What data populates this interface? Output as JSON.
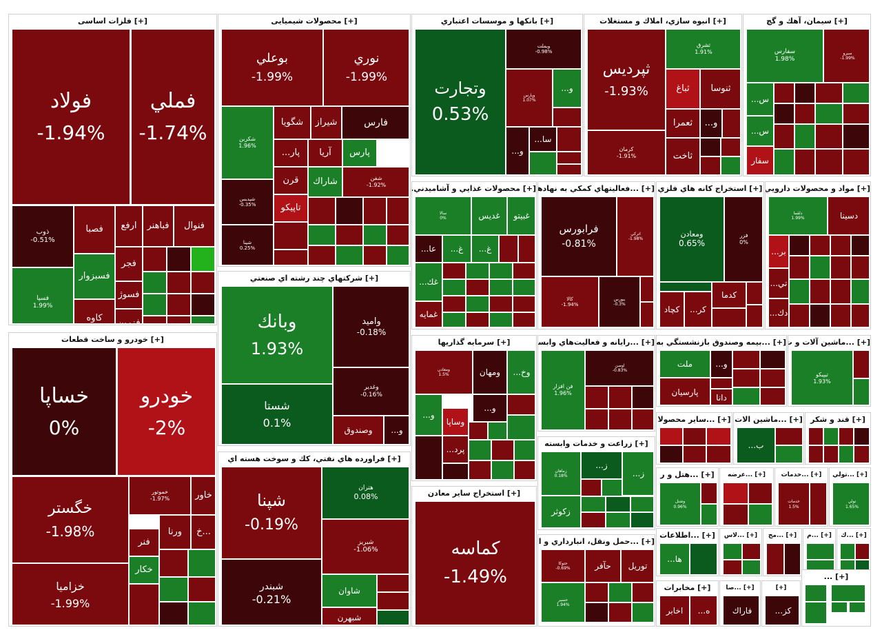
{
  "colors": {
    "dark_red": "#7a0a0e",
    "red": "#8d0f14",
    "bright_red": "#b01217",
    "very_dark_red": "#3d0709",
    "dark_green": "#0b5a1e",
    "green": "#1a7f26",
    "light_green": "#2f9a2c",
    "bright_green": "#23b21c"
  },
  "chart_data": {
    "type": "treemap",
    "sectors": [
      {
        "name": "[+] فلزات اساسی",
        "cells": [
          {
            "name": "فولاد",
            "value": "-1.94%"
          },
          {
            "name": "فملي",
            "value": "-1.74%"
          },
          {
            "name": "ذوب",
            "value": "-0.51%"
          },
          {
            "name": "فصبا",
            "value": ""
          },
          {
            "name": "ارفع",
            "value": ""
          },
          {
            "name": "فباهنر",
            "value": ""
          },
          {
            "name": "فنوال",
            "value": ""
          },
          {
            "name": "فسبزوار",
            "value": ""
          },
          {
            "name": "فجر",
            "value": ""
          },
          {
            "name": "فسپا",
            "value": "1.99%"
          },
          {
            "name": "فسوژ",
            "value": ""
          },
          {
            "name": "كاوه",
            "value": ""
          },
          {
            "name": "فزرين",
            "value": ""
          }
        ]
      },
      {
        "name": "[+] خودرو و ساخت قطعات",
        "cells": [
          {
            "name": "خساپا",
            "value": "0%"
          },
          {
            "name": "خودرو",
            "value": "-2%"
          },
          {
            "name": "خگستر",
            "value": "-1.98%"
          },
          {
            "name": "خزامیا",
            "value": "-1.99%"
          },
          {
            "name": "خموتور",
            "value": "-1.97%"
          },
          {
            "name": "خاور",
            "value": ""
          },
          {
            "name": "ورنا",
            "value": ""
          },
          {
            "name": "خ...",
            "value": ""
          },
          {
            "name": "فنر",
            "value": ""
          },
          {
            "name": "خكار",
            "value": ""
          }
        ]
      },
      {
        "name": "[+] محصولات شیمیایی",
        "cells": [
          {
            "name": "بوعلي",
            "value": "-1.99%"
          },
          {
            "name": "نوري",
            "value": "-1.99%"
          },
          {
            "name": "شكربن",
            "value": "1.96%"
          },
          {
            "name": "شگويا",
            "value": ""
          },
          {
            "name": "شيراز",
            "value": ""
          },
          {
            "name": "فارس",
            "value": ""
          },
          {
            "name": "...پار",
            "value": ""
          },
          {
            "name": "آريا",
            "value": ""
          },
          {
            "name": "پارس",
            "value": ""
          },
          {
            "name": "قرن",
            "value": ""
          },
          {
            "name": "شاراك",
            "value": ""
          },
          {
            "name": "تاپيكو",
            "value": ""
          },
          {
            "name": "شپديس",
            "value": "-0.35%"
          },
          {
            "name": "شپنا",
            "value": "0.25%"
          },
          {
            "name": "شفن",
            "value": "-1.92%"
          }
        ]
      },
      {
        "name": "[+] شركتهاي چند رشته اي صنعتي",
        "cells": [
          {
            "name": "وبانك",
            "value": "1.93%"
          },
          {
            "name": "واميد",
            "value": "-0.18%"
          },
          {
            "name": "شستا",
            "value": "0.1%"
          },
          {
            "name": "وغدير",
            "value": "-0.16%"
          },
          {
            "name": "وصندوق",
            "value": ""
          },
          {
            "name": "...و",
            "value": ""
          }
        ]
      },
      {
        "name": "[+] فراورده هاي نفتي، كك و سوخت هسته اي",
        "cells": [
          {
            "name": "شپنا",
            "value": "-0.19%"
          },
          {
            "name": "هتران",
            "value": "0.08%"
          },
          {
            "name": "شبريز",
            "value": "-1.06%"
          },
          {
            "name": "شبندر",
            "value": "-0.21%"
          },
          {
            "name": "شاوان",
            "value": ""
          },
          {
            "name": "شبهرن",
            "value": ""
          }
        ]
      },
      {
        "name": "[+] بانكها و موسسات اعتباري",
        "cells": [
          {
            "name": "وتجارت",
            "value": "0.53%"
          },
          {
            "name": "وبملت",
            "value": "-0.98%"
          },
          {
            "name": "وپارس",
            "value": "1.07%"
          },
          {
            "name": "...و",
            "value": ""
          },
          {
            "name": "...سا",
            "value": ""
          },
          {
            "name": "...و",
            "value": ""
          }
        ]
      },
      {
        "name": "[+] انبوه سازي، املاك و مستغلات",
        "cells": [
          {
            "name": "ثپرديس",
            "value": "-1.93%"
          },
          {
            "name": "ثشرق",
            "value": "1.91%"
          },
          {
            "name": "ثباغ",
            "value": ""
          },
          {
            "name": "ثعمرا",
            "value": ""
          },
          {
            "name": "...و",
            "value": ""
          },
          {
            "name": "ثاخت",
            "value": ""
          },
          {
            "name": "كرمان",
            "value": "-1.91%"
          },
          {
            "name": "ثنوسا",
            "value": ""
          }
        ]
      },
      {
        "name": "[+] سيمان، آهك و گچ",
        "cells": [
          {
            "name": "سفارس",
            "value": "1.98%"
          },
          {
            "name": "سيرو",
            "value": "-1.99%"
          },
          {
            "name": "...س",
            "value": ""
          },
          {
            "name": "...س",
            "value": ""
          },
          {
            "name": "سفار",
            "value": ""
          }
        ]
      },
      {
        "name": "[+] محصولات غذايي و آشاميدني...",
        "cells": [
          {
            "name": "غبيتو",
            "value": ""
          },
          {
            "name": "غديس",
            "value": ""
          },
          {
            "name": "سالا",
            "value": "0%"
          },
          {
            "name": "...عا",
            "value": ""
          },
          {
            "name": "...غ",
            "value": ""
          },
          {
            "name": "...غ",
            "value": ""
          },
          {
            "name": "...غك",
            "value": ""
          },
          {
            "name": "غمايه",
            "value": ""
          }
        ]
      },
      {
        "name": "[+] ...فعاليتهاي كمكي به نهادهاي",
        "cells": [
          {
            "name": "فرابورس",
            "value": "-0.81%"
          },
          {
            "name": "اتركي",
            "value": "-1.98%"
          },
          {
            "name": "كالا",
            "value": "-1.94%"
          },
          {
            "name": "ببورس",
            "value": "-0.3%"
          }
        ]
      },
      {
        "name": "[+] استخراج كانه هاي فلزي",
        "cells": [
          {
            "name": "ومعادن",
            "value": "0.65%"
          },
          {
            "name": "فزر",
            "value": "0%"
          },
          {
            "name": "كدما",
            "value": ""
          },
          {
            "name": "...كر",
            "value": ""
          },
          {
            "name": "كچاد",
            "value": ""
          }
        ]
      },
      {
        "name": "[+] مواد و محصولات دارويي",
        "cells": [
          {
            "name": "دسينا",
            "value": ""
          },
          {
            "name": "دلقما",
            "value": "1.99%"
          },
          {
            "name": "...بر",
            "value": ""
          },
          {
            "name": "...تي",
            "value": ""
          },
          {
            "name": "...دك",
            "value": ""
          }
        ]
      },
      {
        "name": "[+] سرمايه گذاريها",
        "cells": [
          {
            "name": "ومعادن",
            "value": "1.5%"
          },
          {
            "name": "ومهان",
            "value": ""
          },
          {
            "name": "...وخ",
            "value": ""
          },
          {
            "name": "...و",
            "value": ""
          },
          {
            "name": "...و",
            "value": ""
          },
          {
            "name": "وساپا",
            "value": ""
          },
          {
            "name": "...پرد",
            "value": ""
          }
        ]
      },
      {
        "name": "[+] ...رايانه و فعاليت‌هاي وابسته",
        "cells": [
          {
            "name": "فن افزار",
            "value": "1.96%"
          },
          {
            "name": "اوصن",
            "value": "-0.83%"
          }
        ]
      },
      {
        "name": "[+] ...بيمه وصندوق بازنشستگي به ج",
        "cells": [
          {
            "name": "ملت",
            "value": ""
          },
          {
            "name": "...و",
            "value": ""
          },
          {
            "name": "پارسيان",
            "value": ""
          },
          {
            "name": "دانا",
            "value": ""
          }
        ]
      },
      {
        "name": "[+] ...ماشين آلات و ت",
        "cells": [
          {
            "name": "تيپيكو",
            "value": "1.93%"
          }
        ]
      },
      {
        "name": "[+] استخراج ساير معادن",
        "cells": [
          {
            "name": "كماسه",
            "value": "-1.49%"
          }
        ]
      },
      {
        "name": "[+] زراعت و خدمات وابسته",
        "cells": [
          {
            "name": "زماهان",
            "value": "0.18%"
          },
          {
            "name": "...ز",
            "value": ""
          },
          {
            "name": "...ز",
            "value": ""
          },
          {
            "name": "زكوثر",
            "value": ""
          }
        ]
      },
      {
        "name": "[+] ...حمل ونقل، انبارداري و ارت",
        "cells": [
          {
            "name": "حتوكا",
            "value": "-0.69%"
          },
          {
            "name": "حآفر",
            "value": ""
          },
          {
            "name": "توريل",
            "value": ""
          },
          {
            "name": "حسير",
            "value": "1.94%"
          }
        ]
      },
      {
        "name": "[+] ...ساير محصولا",
        "cells": []
      },
      {
        "name": "[+] ...ماشين الات",
        "cells": [
          {
            "name": "...ب",
            "value": ""
          }
        ]
      },
      {
        "name": "[+] قند و شكر",
        "cells": []
      },
      {
        "name": "[+] ...هتل و ر",
        "cells": [
          {
            "name": "وشتل",
            "value": "0.96%"
          }
        ]
      },
      {
        "name": "[+] ...عرضه",
        "cells": []
      },
      {
        "name": "[+] ...خدمات",
        "cells": [
          {
            "name": "خدمات",
            "value": "1.5%"
          }
        ]
      },
      {
        "name": "[+] ...تولي",
        "cells": [
          {
            "name": "تولي",
            "value": "1.65%"
          }
        ]
      },
      {
        "name": "[+] ...اطلاعات",
        "cells": [
          {
            "name": "...ها",
            "value": ""
          }
        ]
      },
      {
        "name": "[+] ...لاس",
        "cells": []
      },
      {
        "name": "[+] ...مج",
        "cells": []
      },
      {
        "name": "[+] ...م",
        "cells": []
      },
      {
        "name": "[+] ...ك",
        "cells": []
      },
      {
        "name": "[+] مخابرات",
        "cells": [
          {
            "name": "...ه",
            "value": ""
          },
          {
            "name": "اخابر",
            "value": ""
          }
        ]
      },
      {
        "name": "[+] ...صا",
        "cells": [
          {
            "name": "فاراك",
            "value": ""
          }
        ]
      },
      {
        "name": "[+]",
        "cells": [
          {
            "name": "...كز",
            "value": ""
          }
        ]
      },
      {
        "name": "[+] ...",
        "cells": []
      }
    ]
  }
}
